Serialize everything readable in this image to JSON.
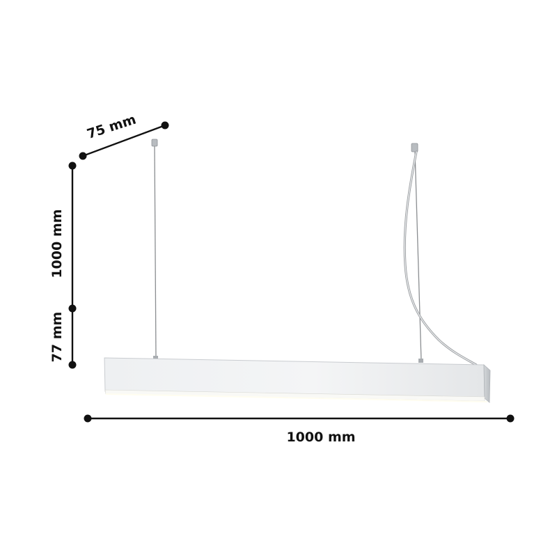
{
  "dimensions": {
    "depth": "75 mm",
    "suspension_length": "1000 mm",
    "height": "77 mm",
    "length": "1000 mm"
  },
  "product": {
    "type": "linear-pendant-light",
    "color": "#f1f3f5"
  }
}
